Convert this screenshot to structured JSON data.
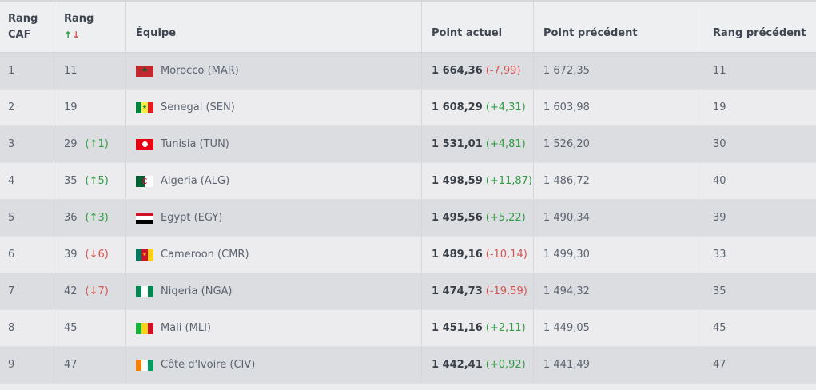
{
  "headers": {
    "rang_caf_line1": "Rang",
    "rang_caf_line2": "CAF",
    "rang_line1": "Rang",
    "rang_up_arrow": "↑",
    "rang_down_arrow": "↓",
    "equipe": "Équipe",
    "point_actuel": "Point actuel",
    "point_precedent": "Point précédent",
    "rang_precedent": "Rang précédent"
  },
  "rows": [
    {
      "caf": "1",
      "rang": "11",
      "move": "",
      "move_dir": "",
      "team": "Morocco (MAR)",
      "flag": "morocco-flag-icon",
      "points": "1 664,36",
      "delta": "(-7,99)",
      "delta_sign": "neg",
      "prev_points": "1 672,35",
      "prev_rank": "11"
    },
    {
      "caf": "2",
      "rang": "19",
      "move": "",
      "move_dir": "",
      "team": "Senegal (SEN)",
      "flag": "senegal-flag-icon",
      "points": "1 608,29",
      "delta": "(+4,31)",
      "delta_sign": "pos",
      "prev_points": "1 603,98",
      "prev_rank": "19"
    },
    {
      "caf": "3",
      "rang": "29",
      "move": "(↑1)",
      "move_dir": "up",
      "team": "Tunisia (TUN)",
      "flag": "tunisia-flag-icon",
      "points": "1 531,01",
      "delta": "(+4,81)",
      "delta_sign": "pos",
      "prev_points": "1 526,20",
      "prev_rank": "30"
    },
    {
      "caf": "4",
      "rang": "35",
      "move": "(↑5)",
      "move_dir": "up",
      "team": "Algeria (ALG)",
      "flag": "algeria-flag-icon",
      "points": "1 498,59",
      "delta": "(+11,87)",
      "delta_sign": "pos",
      "prev_points": "1 486,72",
      "prev_rank": "40"
    },
    {
      "caf": "5",
      "rang": "36",
      "move": "(↑3)",
      "move_dir": "up",
      "team": "Egypt (EGY)",
      "flag": "egypt-flag-icon",
      "points": "1 495,56",
      "delta": "(+5,22)",
      "delta_sign": "pos",
      "prev_points": "1 490,34",
      "prev_rank": "39"
    },
    {
      "caf": "6",
      "rang": "39",
      "move": "(↓6)",
      "move_dir": "down",
      "team": "Cameroon (CMR)",
      "flag": "cameroon-flag-icon",
      "points": "1 489,16",
      "delta": "(-10,14)",
      "delta_sign": "neg",
      "prev_points": "1 499,30",
      "prev_rank": "33"
    },
    {
      "caf": "7",
      "rang": "42",
      "move": "(↓7)",
      "move_dir": "down",
      "team": "Nigeria (NGA)",
      "flag": "nigeria-flag-icon",
      "points": "1 474,73",
      "delta": "(-19,59)",
      "delta_sign": "neg",
      "prev_points": "1 494,32",
      "prev_rank": "35"
    },
    {
      "caf": "8",
      "rang": "45",
      "move": "",
      "move_dir": "",
      "team": "Mali (MLI)",
      "flag": "mali-flag-icon",
      "points": "1 451,16",
      "delta": "(+2,11)",
      "delta_sign": "pos",
      "prev_points": "1 449,05",
      "prev_rank": "45"
    },
    {
      "caf": "9",
      "rang": "47",
      "move": "",
      "move_dir": "",
      "team": "Côte d'Ivoire (CIV)",
      "flag": "cote-divoire-flag-icon",
      "points": "1 442,41",
      "delta": "(+0,92)",
      "delta_sign": "pos",
      "prev_points": "1 441,49",
      "prev_rank": "47"
    }
  ],
  "colors": {
    "positive": "#2f9e44",
    "negative": "#d9534f",
    "row_odd": "#dcdde0",
    "row_even": "#ececee"
  }
}
